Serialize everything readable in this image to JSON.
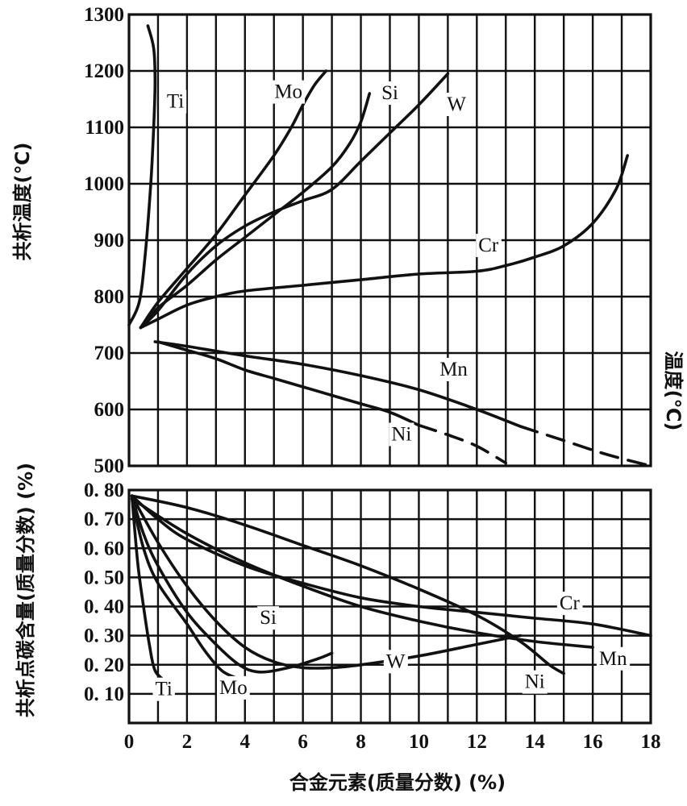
{
  "chart_data": [
    {
      "type": "line",
      "xlabel": "",
      "ylabel": "共析温度(℃)",
      "ylabel_right": "温度(℃)",
      "xlim": [
        0,
        18
      ],
      "ylim": [
        500,
        1300
      ],
      "y_ticks": [
        "1300",
        "1200",
        "1100",
        "1000",
        "900",
        "800",
        "700",
        "600",
        "500"
      ],
      "grid": true,
      "series": [
        {
          "name": "Ti",
          "label_pos": {
            "x": 1.6,
            "y": 1135
          },
          "points": [
            [
              0,
              750
            ],
            [
              0.35,
              790
            ],
            [
              0.55,
              870
            ],
            [
              0.75,
              1000
            ],
            [
              0.85,
              1100
            ],
            [
              0.9,
              1180
            ],
            [
              0.85,
              1240
            ],
            [
              0.65,
              1280
            ]
          ]
        },
        {
          "name": "Mo",
          "label_pos": {
            "x": 5.5,
            "y": 1152
          },
          "points": [
            [
              0.4,
              745
            ],
            [
              1,
              790
            ],
            [
              2,
              850
            ],
            [
              3,
              910
            ],
            [
              4,
              980
            ],
            [
              5,
              1050
            ],
            [
              5.6,
              1100
            ],
            [
              6,
              1140
            ],
            [
              6.4,
              1175
            ],
            [
              6.8,
              1200
            ]
          ]
        },
        {
          "name": "Si",
          "label_pos": {
            "x": 9.0,
            "y": 1150
          },
          "points": [
            [
              0.4,
              745
            ],
            [
              1,
              780
            ],
            [
              2,
              820
            ],
            [
              3,
              865
            ],
            [
              4,
              905
            ],
            [
              5,
              945
            ],
            [
              6,
              985
            ],
            [
              7,
              1030
            ],
            [
              7.6,
              1070
            ],
            [
              8,
              1110
            ],
            [
              8.3,
              1160
            ]
          ]
        },
        {
          "name": "W",
          "label_pos": {
            "x": 11.3,
            "y": 1130
          },
          "points": [
            [
              0.4,
              745
            ],
            [
              1,
              775
            ],
            [
              2,
              840
            ],
            [
              3,
              890
            ],
            [
              4,
              925
            ],
            [
              5,
              950
            ],
            [
              6,
              970
            ],
            [
              7,
              990
            ],
            [
              8,
              1040
            ],
            [
              9,
              1090
            ],
            [
              10,
              1140
            ],
            [
              11,
              1195
            ]
          ]
        },
        {
          "name": "Cr",
          "label_pos": {
            "x": 12.4,
            "y": 880
          },
          "points": [
            [
              0.4,
              745
            ],
            [
              1,
              760
            ],
            [
              2,
              785
            ],
            [
              3,
              800
            ],
            [
              4,
              810
            ],
            [
              6,
              820
            ],
            [
              8,
              830
            ],
            [
              10,
              840
            ],
            [
              12,
              845
            ],
            [
              13,
              855
            ],
            [
              14,
              870
            ],
            [
              15,
              890
            ],
            [
              16,
              930
            ],
            [
              16.8,
              990
            ],
            [
              17.2,
              1050
            ]
          ]
        },
        {
          "name": "Mn",
          "label_pos": {
            "x": 11.2,
            "y": 660
          },
          "points": [
            [
              0.9,
              720
            ],
            [
              2,
              712
            ],
            [
              4,
              695
            ],
            [
              6,
              680
            ],
            [
              8,
              660
            ],
            [
              10,
              635
            ],
            [
              12,
              600
            ],
            [
              13.5,
              570
            ]
          ],
          "dashed_points": [
            [
              13.5,
              570
            ],
            [
              15,
              545
            ],
            [
              16.5,
              520
            ],
            [
              18,
              500
            ]
          ]
        },
        {
          "name": "Ni",
          "label_pos": {
            "x": 9.4,
            "y": 545
          },
          "points": [
            [
              1,
              720
            ],
            [
              2,
              705
            ],
            [
              3,
              690
            ],
            [
              4,
              670
            ],
            [
              5,
              655
            ],
            [
              6,
              640
            ],
            [
              7,
              625
            ],
            [
              8,
              610
            ],
            [
              9,
              595
            ],
            [
              10,
              572
            ]
          ],
          "dashed_points": [
            [
              10,
              572
            ],
            [
              11,
              555
            ],
            [
              12,
              535
            ],
            [
              13,
              505
            ]
          ]
        }
      ]
    },
    {
      "type": "line",
      "xlabel": "合金元素(质量分数) (%)",
      "ylabel": "共析点碳含量(质量分数) (%)",
      "xlim": [
        0,
        18
      ],
      "ylim": [
        0,
        0.8
      ],
      "x_ticks": [
        "0",
        "2",
        "4",
        "6",
        "8",
        "10",
        "12",
        "14",
        "16",
        "18"
      ],
      "y_ticks": [
        "0. 80",
        "0. 70",
        "0. 60",
        "0. 50",
        "0. 40",
        "0. 30",
        "0. 20",
        "0. 10"
      ],
      "grid": true,
      "series": [
        {
          "name": "Ti",
          "label_pos": {
            "x": 1.2,
            "y": 0.095
          },
          "points": [
            [
              0.1,
              0.78
            ],
            [
              0.3,
              0.55
            ],
            [
              0.5,
              0.4
            ],
            [
              0.7,
              0.27
            ],
            [
              0.9,
              0.18
            ],
            [
              1.3,
              0.14
            ]
          ]
        },
        {
          "name": "Mo",
          "label_pos": {
            "x": 3.6,
            "y": 0.1
          },
          "points": [
            [
              0.1,
              0.77
            ],
            [
              0.5,
              0.6
            ],
            [
              1,
              0.48
            ],
            [
              2,
              0.34
            ],
            [
              2.6,
              0.25
            ],
            [
              3.2,
              0.18
            ],
            [
              3.7,
              0.155
            ]
          ]
        },
        {
          "name": "Si",
          "label_pos": {
            "x": 4.8,
            "y": 0.34
          },
          "points": [
            [
              0.1,
              0.78
            ],
            [
              0.5,
              0.65
            ],
            [
              1,
              0.54
            ],
            [
              2,
              0.38
            ],
            [
              3,
              0.27
            ],
            [
              3.8,
              0.2
            ],
            [
              4.5,
              0.175
            ],
            [
              5.5,
              0.19
            ],
            [
              6.5,
              0.22
            ],
            [
              7,
              0.24
            ]
          ]
        },
        {
          "name": "W",
          "label_pos": {
            "x": 9.2,
            "y": 0.19
          },
          "points": [
            [
              0.1,
              0.78
            ],
            [
              1,
              0.62
            ],
            [
              2,
              0.47
            ],
            [
              3,
              0.35
            ],
            [
              4,
              0.26
            ],
            [
              5,
              0.21
            ],
            [
              6,
              0.19
            ],
            [
              7,
              0.19
            ],
            [
              8,
              0.2
            ],
            [
              10,
              0.23
            ],
            [
              12,
              0.27
            ],
            [
              13.5,
              0.3
            ]
          ]
        },
        {
          "name": "Cr",
          "label_pos": {
            "x": 15.2,
            "y": 0.39
          },
          "points": [
            [
              0.1,
              0.78
            ],
            [
              1,
              0.7
            ],
            [
              2,
              0.63
            ],
            [
              4,
              0.54
            ],
            [
              6,
              0.48
            ],
            [
              8,
              0.43
            ],
            [
              10,
              0.4
            ],
            [
              12,
              0.38
            ],
            [
              14,
              0.36
            ],
            [
              16,
              0.34
            ],
            [
              18,
              0.3
            ]
          ]
        },
        {
          "name": "Mn",
          "label_pos": {
            "x": 16.7,
            "y": 0.2
          },
          "points": [
            [
              0.1,
              0.77
            ],
            [
              2,
              0.65
            ],
            [
              4,
              0.55
            ],
            [
              6,
              0.47
            ],
            [
              8,
              0.4
            ],
            [
              10,
              0.35
            ],
            [
              12,
              0.31
            ],
            [
              14,
              0.28
            ],
            [
              16,
              0.26
            ]
          ]
        },
        {
          "name": "Ni",
          "label_pos": {
            "x": 14.0,
            "y": 0.12
          },
          "points": [
            [
              0.1,
              0.78
            ],
            [
              2,
              0.74
            ],
            [
              4,
              0.68
            ],
            [
              6,
              0.61
            ],
            [
              8,
              0.54
            ],
            [
              10,
              0.46
            ],
            [
              12,
              0.37
            ],
            [
              13.5,
              0.28
            ],
            [
              14.5,
              0.2
            ],
            [
              15,
              0.17
            ]
          ]
        }
      ]
    }
  ]
}
